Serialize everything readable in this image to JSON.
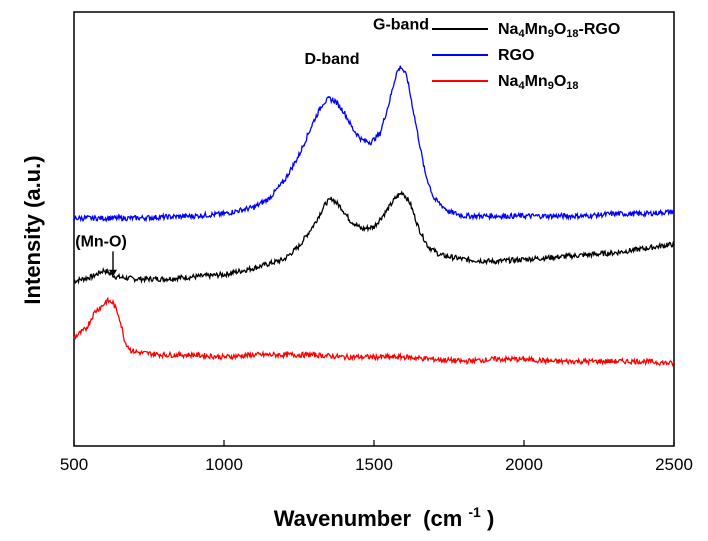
{
  "chart_data": {
    "type": "line",
    "xlabel": "Wavenumber",
    "xlabel_unit": "(cm",
    "xlabel_sup": "-1",
    "xlabel_close": ")",
    "ylabel": "Intensity (a.u.)",
    "xlim": [
      500,
      2500
    ],
    "ylim": [
      0,
      1
    ],
    "x_ticks": [
      500,
      1000,
      1500,
      2000,
      2500
    ],
    "x_tick_labels": [
      "500",
      "1000",
      "1500",
      "2000",
      "2500"
    ],
    "y_tick_labels_shown": false,
    "grid": false,
    "legend_position": "top-right",
    "legend": [
      {
        "parts": [
          [
            "Na",
            ""
          ],
          [
            "4",
            "sub"
          ],
          [
            "Mn",
            ""
          ],
          [
            "9",
            "sub"
          ],
          [
            "O",
            ""
          ],
          [
            "18",
            "sub"
          ],
          [
            "-RGO",
            ""
          ]
        ]
      },
      {
        "parts": [
          [
            "RGO",
            ""
          ]
        ]
      },
      {
        "parts": [
          [
            "Na",
            ""
          ],
          [
            "4",
            "sub"
          ],
          [
            "Mn",
            ""
          ],
          [
            "9",
            "sub"
          ],
          [
            "O",
            ""
          ],
          [
            "18",
            "sub"
          ]
        ]
      }
    ],
    "annotations": [
      {
        "text": "D-band",
        "x": 1360,
        "y": 0.88
      },
      {
        "text": "G-band",
        "x": 1590,
        "y": 0.96
      },
      {
        "text": "(Mn-O)",
        "x": 590,
        "y": 0.46,
        "arrow_to_y": 0.39
      }
    ],
    "series": [
      {
        "color": "#000000",
        "points": [
          [
            500,
            0.38
          ],
          [
            560,
            0.39
          ],
          [
            600,
            0.405
          ],
          [
            640,
            0.39
          ],
          [
            700,
            0.385
          ],
          [
            800,
            0.385
          ],
          [
            900,
            0.39
          ],
          [
            1000,
            0.395
          ],
          [
            1100,
            0.41
          ],
          [
            1200,
            0.43
          ],
          [
            1250,
            0.46
          ],
          [
            1300,
            0.51
          ],
          [
            1340,
            0.56
          ],
          [
            1360,
            0.57
          ],
          [
            1390,
            0.55
          ],
          [
            1420,
            0.52
          ],
          [
            1460,
            0.5
          ],
          [
            1500,
            0.505
          ],
          [
            1540,
            0.54
          ],
          [
            1570,
            0.57
          ],
          [
            1595,
            0.585
          ],
          [
            1620,
            0.56
          ],
          [
            1650,
            0.5
          ],
          [
            1680,
            0.46
          ],
          [
            1720,
            0.44
          ],
          [
            1800,
            0.43
          ],
          [
            1900,
            0.425
          ],
          [
            2000,
            0.43
          ],
          [
            2100,
            0.435
          ],
          [
            2200,
            0.44
          ],
          [
            2300,
            0.445
          ],
          [
            2400,
            0.455
          ],
          [
            2500,
            0.465
          ]
        ]
      },
      {
        "color": "#0000ff",
        "points": [
          [
            500,
            0.525
          ],
          [
            700,
            0.525
          ],
          [
            900,
            0.53
          ],
          [
            1000,
            0.535
          ],
          [
            1100,
            0.55
          ],
          [
            1150,
            0.57
          ],
          [
            1200,
            0.61
          ],
          [
            1250,
            0.67
          ],
          [
            1300,
            0.75
          ],
          [
            1330,
            0.79
          ],
          [
            1350,
            0.8
          ],
          [
            1370,
            0.795
          ],
          [
            1400,
            0.77
          ],
          [
            1430,
            0.73
          ],
          [
            1460,
            0.705
          ],
          [
            1490,
            0.7
          ],
          [
            1520,
            0.72
          ],
          [
            1550,
            0.79
          ],
          [
            1575,
            0.86
          ],
          [
            1590,
            0.875
          ],
          [
            1610,
            0.85
          ],
          [
            1640,
            0.74
          ],
          [
            1670,
            0.63
          ],
          [
            1700,
            0.57
          ],
          [
            1750,
            0.54
          ],
          [
            1800,
            0.53
          ],
          [
            1900,
            0.53
          ],
          [
            2000,
            0.53
          ],
          [
            2100,
            0.53
          ],
          [
            2200,
            0.53
          ],
          [
            2300,
            0.535
          ],
          [
            2400,
            0.535
          ],
          [
            2500,
            0.54
          ]
        ]
      },
      {
        "color": "#ff0000",
        "points": [
          [
            500,
            0.25
          ],
          [
            540,
            0.27
          ],
          [
            570,
            0.31
          ],
          [
            590,
            0.32
          ],
          [
            610,
            0.335
          ],
          [
            630,
            0.33
          ],
          [
            650,
            0.3
          ],
          [
            670,
            0.24
          ],
          [
            690,
            0.22
          ],
          [
            720,
            0.215
          ],
          [
            800,
            0.21
          ],
          [
            900,
            0.21
          ],
          [
            1000,
            0.205
          ],
          [
            1100,
            0.21
          ],
          [
            1200,
            0.21
          ],
          [
            1300,
            0.21
          ],
          [
            1400,
            0.205
          ],
          [
            1500,
            0.205
          ],
          [
            1600,
            0.205
          ],
          [
            1700,
            0.2
          ],
          [
            1800,
            0.195
          ],
          [
            1900,
            0.2
          ],
          [
            2000,
            0.2
          ],
          [
            2100,
            0.195
          ],
          [
            2200,
            0.195
          ],
          [
            2300,
            0.195
          ],
          [
            2400,
            0.195
          ],
          [
            2500,
            0.19
          ]
        ]
      }
    ]
  }
}
